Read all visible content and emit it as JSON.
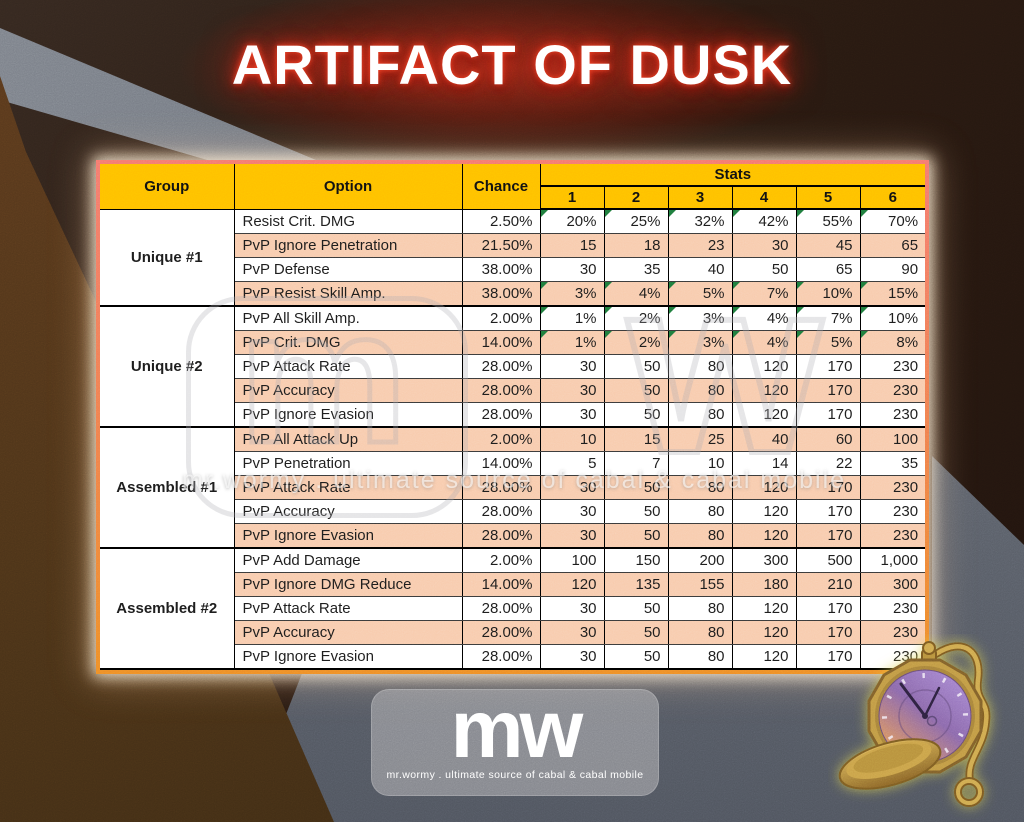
{
  "title": "ARTIFACT OF DUSK",
  "table": {
    "headers": {
      "group": "Group",
      "option": "Option",
      "chance": "Chance",
      "stats": "Stats",
      "stat_levels": [
        "1",
        "2",
        "3",
        "4",
        "5",
        "6"
      ]
    },
    "groups": [
      {
        "name": "Unique #1",
        "rows": [
          {
            "option": "Resist Crit. DMG",
            "chance": "2.50%",
            "pct": true,
            "stats": [
              "20%",
              "25%",
              "32%",
              "42%",
              "55%",
              "70%"
            ]
          },
          {
            "option": "PvP Ignore Penetration",
            "chance": "21.50%",
            "pct": false,
            "stats": [
              "15",
              "18",
              "23",
              "30",
              "45",
              "65"
            ]
          },
          {
            "option": "PvP Defense",
            "chance": "38.00%",
            "pct": false,
            "stats": [
              "30",
              "35",
              "40",
              "50",
              "65",
              "90"
            ]
          },
          {
            "option": "PvP Resist Skill Amp.",
            "chance": "38.00%",
            "pct": true,
            "stats": [
              "3%",
              "4%",
              "5%",
              "7%",
              "10%",
              "15%"
            ]
          }
        ]
      },
      {
        "name": "Unique #2",
        "rows": [
          {
            "option": "PvP All Skill Amp.",
            "chance": "2.00%",
            "pct": true,
            "stats": [
              "1%",
              "2%",
              "3%",
              "4%",
              "7%",
              "10%"
            ]
          },
          {
            "option": "PvP Crit. DMG",
            "chance": "14.00%",
            "pct": true,
            "stats": [
              "1%",
              "2%",
              "3%",
              "4%",
              "5%",
              "8%"
            ]
          },
          {
            "option": "PvP Attack Rate",
            "chance": "28.00%",
            "pct": false,
            "stats": [
              "30",
              "50",
              "80",
              "120",
              "170",
              "230"
            ]
          },
          {
            "option": "PvP Accuracy",
            "chance": "28.00%",
            "pct": false,
            "stats": [
              "30",
              "50",
              "80",
              "120",
              "170",
              "230"
            ]
          },
          {
            "option": "PvP Ignore Evasion",
            "chance": "28.00%",
            "pct": false,
            "stats": [
              "30",
              "50",
              "80",
              "120",
              "170",
              "230"
            ]
          }
        ]
      },
      {
        "name": "Assembled #1",
        "rows": [
          {
            "option": "PvP All Attack Up",
            "chance": "2.00%",
            "pct": false,
            "stats": [
              "10",
              "15",
              "25",
              "40",
              "60",
              "100"
            ]
          },
          {
            "option": "PvP Penetration",
            "chance": "14.00%",
            "pct": false,
            "stats": [
              "5",
              "7",
              "10",
              "14",
              "22",
              "35"
            ]
          },
          {
            "option": "PvP Attack Rate",
            "chance": "28.00%",
            "pct": false,
            "stats": [
              "30",
              "50",
              "80",
              "120",
              "170",
              "230"
            ]
          },
          {
            "option": "PvP Accuracy",
            "chance": "28.00%",
            "pct": false,
            "stats": [
              "30",
              "50",
              "80",
              "120",
              "170",
              "230"
            ]
          },
          {
            "option": "PvP Ignore Evasion",
            "chance": "28.00%",
            "pct": false,
            "stats": [
              "30",
              "50",
              "80",
              "120",
              "170",
              "230"
            ]
          }
        ]
      },
      {
        "name": "Assembled #2",
        "rows": [
          {
            "option": "PvP Add Damage",
            "chance": "2.00%",
            "pct": false,
            "stats": [
              "100",
              "150",
              "200",
              "300",
              "500",
              "1,000"
            ]
          },
          {
            "option": "PvP Ignore DMG Reduce",
            "chance": "14.00%",
            "pct": false,
            "stats": [
              "120",
              "135",
              "155",
              "180",
              "210",
              "300"
            ]
          },
          {
            "option": "PvP Attack Rate",
            "chance": "28.00%",
            "pct": false,
            "stats": [
              "30",
              "50",
              "80",
              "120",
              "170",
              "230"
            ]
          },
          {
            "option": "PvP Accuracy",
            "chance": "28.00%",
            "pct": false,
            "stats": [
              "30",
              "50",
              "80",
              "120",
              "170",
              "230"
            ]
          },
          {
            "option": "PvP Ignore Evasion",
            "chance": "28.00%",
            "pct": false,
            "stats": [
              "30",
              "50",
              "80",
              "120",
              "170",
              "230"
            ]
          }
        ]
      }
    ]
  },
  "branding": {
    "logo": "mw",
    "watermark_m": "m",
    "watermark_w": "w",
    "tagline": "mr.wormy . ultimate source of cabal & cabal mobile"
  },
  "icons": {
    "artifact": "pocket-watch-icon"
  },
  "colors": {
    "header_gold": "#ffc000",
    "row_salmon": "#f8cbad",
    "frame_top": "#f5796e",
    "frame_bottom": "#ee8d27",
    "flag_green": "#1e7a3c",
    "title_glow": "#e0301c",
    "watch_gold": "#c19a45",
    "watch_face_purple": "#9f7cc8",
    "watch_face_orange": "#e09a5c"
  }
}
